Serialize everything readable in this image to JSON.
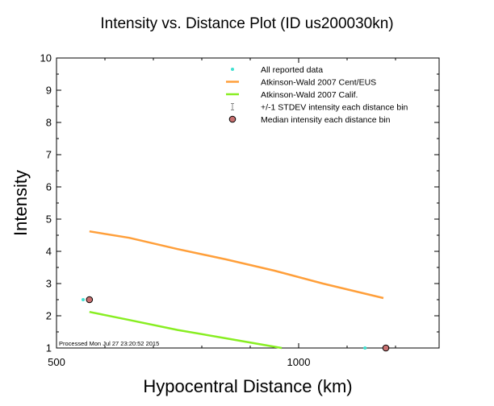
{
  "chart_data": {
    "type": "scatter",
    "title": "Intensity vs. Distance Plot (ID us200030kn)",
    "xlabel": "Hypocentral Distance (km)",
    "ylabel": "Intensity",
    "xlim": [
      500,
      1290
    ],
    "ylim": [
      1,
      10
    ],
    "x_tick_labels": [
      {
        "value": 500,
        "label": "500"
      },
      {
        "value": 1000,
        "label": "1000"
      }
    ],
    "y_tick_labels": [
      {
        "value": 1,
        "label": "1"
      },
      {
        "value": 2,
        "label": "2"
      },
      {
        "value": 3,
        "label": "3"
      },
      {
        "value": 4,
        "label": "4"
      },
      {
        "value": 5,
        "label": "5"
      },
      {
        "value": 6,
        "label": "6"
      },
      {
        "value": 7,
        "label": "7"
      },
      {
        "value": 8,
        "label": "8"
      },
      {
        "value": 9,
        "label": "9"
      },
      {
        "value": 10,
        "label": "10"
      }
    ],
    "series": [
      {
        "name": "All reported data",
        "kind": "points",
        "color": "#40e0d0",
        "points": [
          [
            555,
            2.5
          ],
          [
            1137,
            1.0
          ],
          [
            1180,
            1.0
          ]
        ]
      },
      {
        "name": "Atkinson-Wald 2007 Cent/EUS",
        "kind": "line",
        "color": "#ff9f3a",
        "points": [
          [
            568,
            4.62
          ],
          [
            650,
            4.42
          ],
          [
            750,
            4.07
          ],
          [
            850,
            3.75
          ],
          [
            950,
            3.4
          ],
          [
            1050,
            3.0
          ],
          [
            1175,
            2.55
          ]
        ]
      },
      {
        "name": "Atkinson-Wald 2007 Calif.",
        "kind": "line",
        "color": "#88ee22",
        "points": [
          [
            568,
            2.12
          ],
          [
            650,
            1.87
          ],
          [
            750,
            1.56
          ],
          [
            850,
            1.3
          ],
          [
            965,
            1.0
          ]
        ]
      },
      {
        "name": "+/-1 STDEV intensity each distance bin",
        "kind": "errorbar",
        "color": "#888888",
        "points": []
      },
      {
        "name": "Median intensity each distance bin",
        "kind": "median",
        "color": "#c87070",
        "points": [
          [
            568,
            2.5
          ],
          [
            1180,
            1.0
          ]
        ]
      }
    ],
    "legend": {
      "placement": "top-right",
      "entries": [
        "All reported data",
        "Atkinson-Wald 2007 Cent/EUS",
        "Atkinson-Wald 2007 Calif.",
        "+/-1 STDEV intensity each distance bin",
        "Median intensity each distance bin"
      ]
    },
    "annotation": "Processed Mon Jul 27 23:20:52 2015"
  }
}
